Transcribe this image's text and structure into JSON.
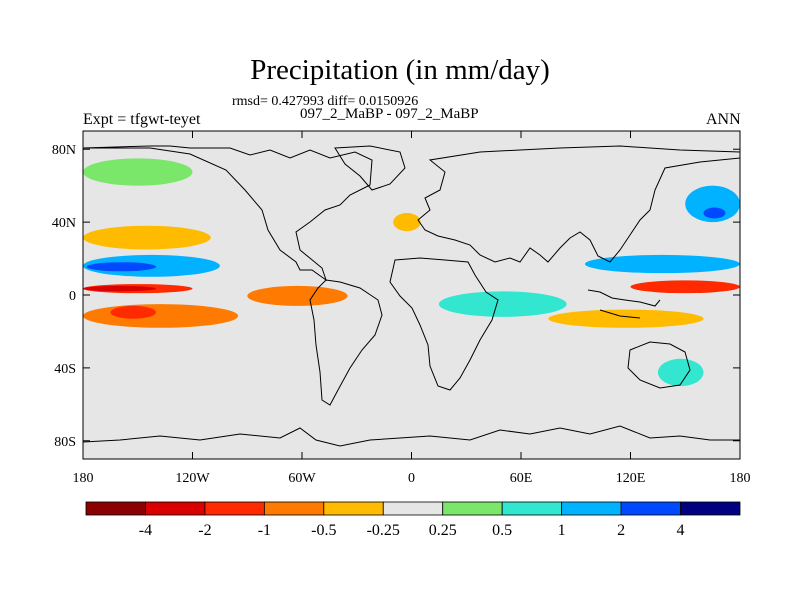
{
  "chart_data": {
    "type": "heatmap",
    "title": "Precipitation (in mm/day)",
    "stats_text": "rmsd= 0.427993 diff= 0.0150926",
    "case_label": "097_2_MaBP - 097_2_MaBP",
    "left_label": "Expt = tfgwt-teyet",
    "right_label": "ANN",
    "x_ticks": [
      "180",
      "120W",
      "60W",
      "0",
      "60E",
      "120E",
      "180"
    ],
    "y_ticks": [
      "80N",
      "40N",
      "0",
      "40S",
      "80S"
    ],
    "xlim": [
      -180,
      180
    ],
    "ylim": [
      -90,
      90
    ],
    "colorbar": {
      "labels": [
        "-4",
        "-2",
        "-1",
        "-0.5",
        "-0.25",
        "0.25",
        "0.5",
        "1",
        "2",
        "4"
      ],
      "colors": [
        "#8b0000",
        "#d90000",
        "#ff2a00",
        "#ff7a00",
        "#ffbb00",
        "#e6e6e6",
        "#7ae66a",
        "#33e6d0",
        "#00b2ff",
        "#0049ff",
        "#000080"
      ]
    },
    "anomaly_regions": [
      {
        "name": "west-pacific-north-wet",
        "bin": 8,
        "lon": [
          -180,
          -105
        ],
        "lat": [
          10,
          22
        ]
      },
      {
        "name": "west-pacific-north-wet-core",
        "bin": 9,
        "lon": [
          -178,
          -140
        ],
        "lat": [
          13,
          18
        ]
      },
      {
        "name": "east-pacific-north-wet",
        "bin": 8,
        "lon": [
          95,
          180
        ],
        "lat": [
          12,
          22
        ]
      },
      {
        "name": "equatorial-central-pacific-dry",
        "bin": 2,
        "lon": [
          -180,
          -120
        ],
        "lat": [
          1,
          6
        ]
      },
      {
        "name": "equatorial-central-pacific-dry-core",
        "bin": 1,
        "lon": [
          -180,
          -140
        ],
        "lat": [
          2,
          5
        ]
      },
      {
        "name": "equatorial-east-pacific-dry",
        "bin": 2,
        "lon": [
          120,
          180
        ],
        "lat": [
          1,
          8
        ]
      },
      {
        "name": "south-pacific-dry",
        "bin": 3,
        "lon": [
          -180,
          -95
        ],
        "lat": [
          -18,
          -5
        ]
      },
      {
        "name": "south-pacific-dry-core",
        "bin": 2,
        "lon": [
          -165,
          -140
        ],
        "lat": [
          -13,
          -6
        ]
      },
      {
        "name": "amazon-atlantic-dry",
        "bin": 3,
        "lon": [
          -90,
          -35
        ],
        "lat": [
          -6,
          5
        ]
      },
      {
        "name": "indian-ocean-wet",
        "bin": 7,
        "lon": [
          15,
          85
        ],
        "lat": [
          -12,
          2
        ]
      },
      {
        "name": "indian-ocean-dry",
        "bin": 4,
        "lon": [
          75,
          160
        ],
        "lat": [
          -18,
          -8
        ]
      },
      {
        "name": "north-pacific-dry",
        "bin": 4,
        "lon": [
          -180,
          -110
        ],
        "lat": [
          25,
          38
        ]
      },
      {
        "name": "north-atlantic-dry",
        "bin": 4,
        "lon": [
          -10,
          5
        ],
        "lat": [
          35,
          45
        ]
      },
      {
        "name": "east-asia-wet",
        "bin": 8,
        "lon": [
          150,
          180
        ],
        "lat": [
          40,
          60
        ]
      },
      {
        "name": "east-asia-wet-core",
        "bin": 9,
        "lon": [
          160,
          172
        ],
        "lat": [
          42,
          48
        ]
      },
      {
        "name": "southern-ocean-wet",
        "bin": 7,
        "lon": [
          135,
          160
        ],
        "lat": [
          -50,
          -35
        ]
      },
      {
        "name": "arctic-wet",
        "bin": 6,
        "lon": [
          -180,
          -120
        ],
        "lat": [
          60,
          75
        ]
      }
    ]
  }
}
